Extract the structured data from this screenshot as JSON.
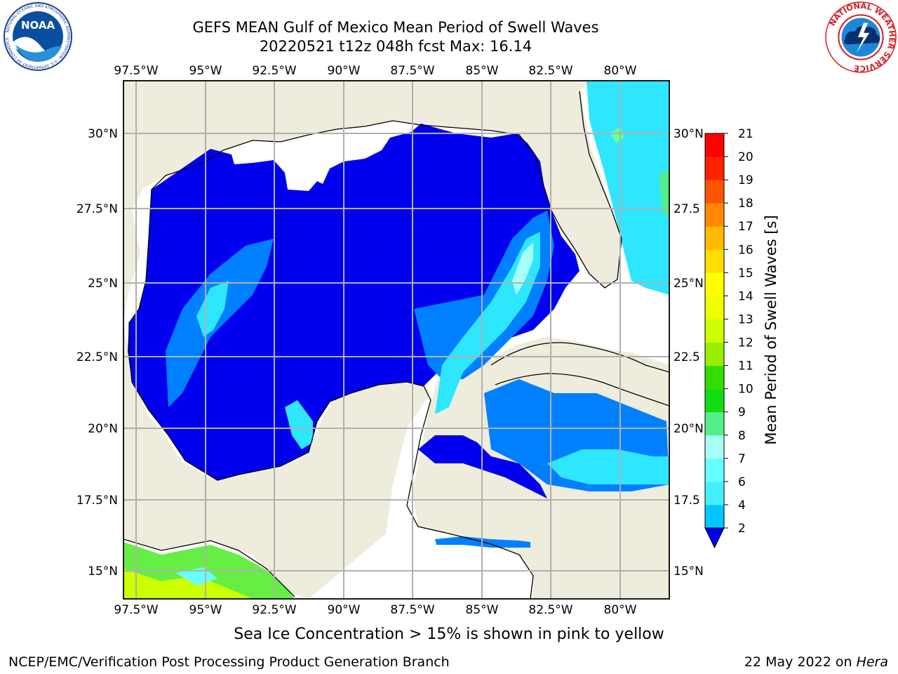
{
  "header": {
    "title_line1": "GEFS MEAN Gulf of Mexico Mean Period of Swell Waves",
    "title_line2": "20220521 t12z 048h fcst   Max: 16.14"
  },
  "logos": {
    "left": "NOAA",
    "left_ring_text": "NATIONAL OCEANIC AND ATMOSPHERIC ADMINISTRATION · U.S. DEPARTMENT OF COMMERCE",
    "right_ring_text": "NATIONAL WEATHER SERVICE"
  },
  "map": {
    "lon_labels": [
      "97.5°W",
      "95°W",
      "92.5°W",
      "90°W",
      "87.5°W",
      "85°W",
      "82.5°W",
      "80°W"
    ],
    "lat_labels_left": [
      "30°N",
      "27.5°N",
      "25°N",
      "22.5°N",
      "20°N",
      "17.5°N",
      "15°N"
    ],
    "lat_labels_right": [
      "30°N",
      "27.5",
      "25°N",
      "22.5",
      "20°N",
      "17.5",
      "15°N"
    ],
    "colors": {
      "land": "#eeecdc",
      "ocean_none": "#ffffff",
      "grid": "#b0b0b0"
    }
  },
  "colorbar": {
    "label": "Mean Period of Swell Waves [s]",
    "ticks": [
      "2",
      "4",
      "6",
      "7",
      "8",
      "9",
      "10",
      "11",
      "12",
      "13",
      "14",
      "15",
      "16",
      "17",
      "18",
      "19",
      "20",
      "21"
    ],
    "colors": [
      "#0033ff",
      "#00c8ff",
      "#44f0ff",
      "#66ffff",
      "#a8fff5",
      "#55ee88",
      "#11dd11",
      "#33dd00",
      "#99ee00",
      "#ccff00",
      "#eeff00",
      "#ffff00",
      "#ffdd00",
      "#ffbb00",
      "#ff8800",
      "#ff5500",
      "#ff2200",
      "#ff0000"
    ],
    "extend_color": "#0000ee"
  },
  "footer": {
    "note": "Sea Ice Concentration > 15% is shown in pink to yellow",
    "credit": "NCEP/EMC/Verification Post Processing Product Generation Branch",
    "date_prefix": "22 May 2022 on ",
    "machine": "Hera"
  }
}
